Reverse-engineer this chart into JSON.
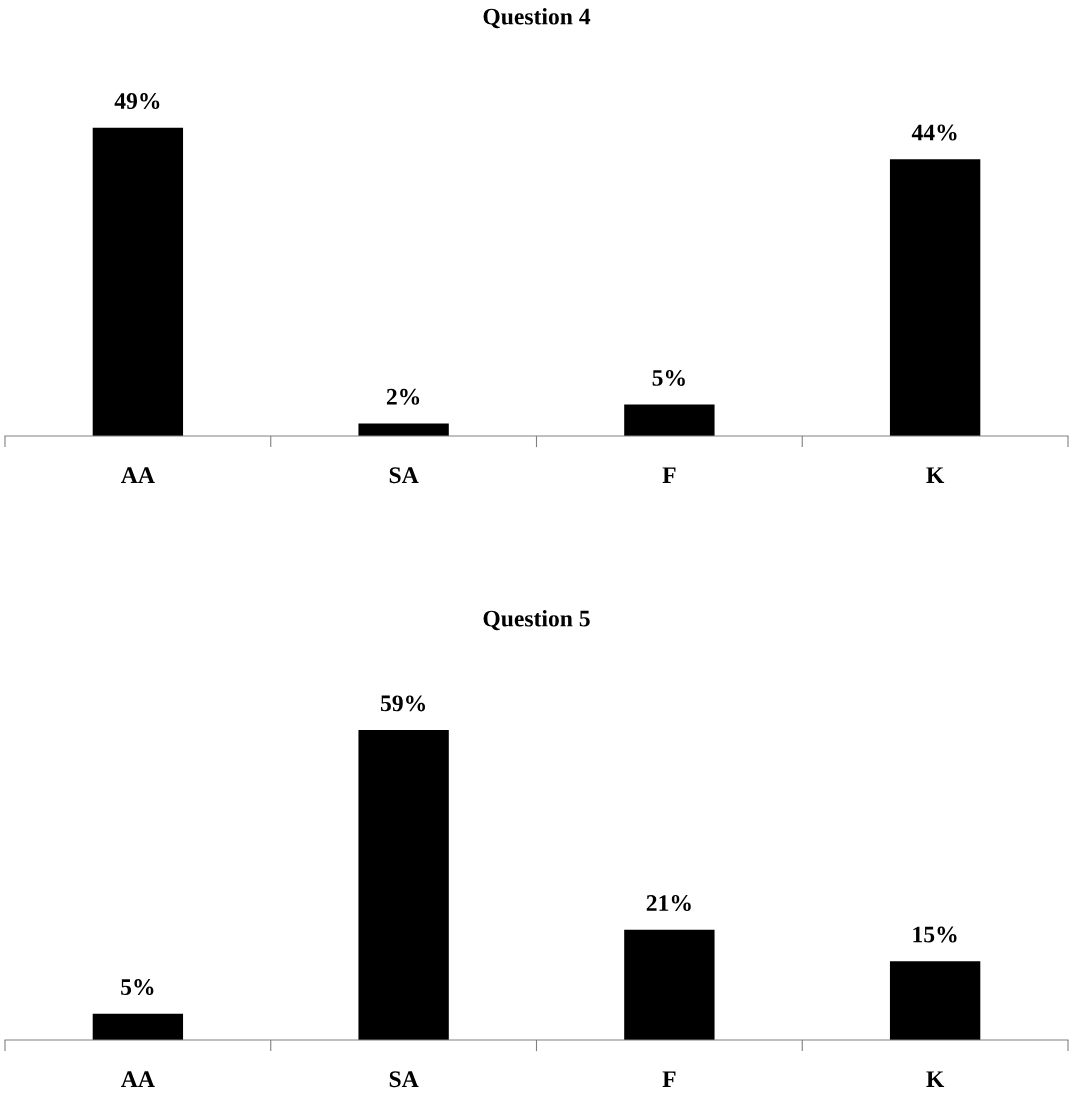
{
  "chart_data": [
    {
      "type": "bar",
      "title": "Question 4",
      "categories": [
        "AA",
        "SA",
        "F",
        "K"
      ],
      "values": [
        49,
        2,
        5,
        44
      ],
      "value_labels": [
        "49%",
        "2%",
        "5%",
        "44%"
      ],
      "color": "#000000",
      "grid": false,
      "legend": false
    },
    {
      "type": "bar",
      "title": "Question 5",
      "categories": [
        "AA",
        "SA",
        "F",
        "K"
      ],
      "values": [
        5,
        59,
        21,
        15
      ],
      "value_labels": [
        "5%",
        "59%",
        "21%",
        "15%"
      ],
      "color": "#000000",
      "grid": false,
      "legend": false
    }
  ]
}
